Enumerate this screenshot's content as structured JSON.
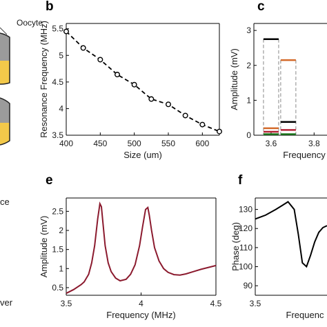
{
  "panel_letters": {
    "b": "b",
    "c": "c",
    "e": "e",
    "f": "f"
  },
  "left_text": {
    "oocyte": "Oocyte",
    "ce": "ce",
    "ver": "ver"
  },
  "chart_data": [
    {
      "id": "b",
      "type": "line",
      "xlabel": "Size (um)",
      "ylabel": "Resonance Frequency (MHz)",
      "xlim": [
        400,
        625
      ],
      "ylim": [
        3.5,
        5.6
      ],
      "xticks": [
        400,
        450,
        500,
        550,
        600
      ],
      "yticks": [
        3.5,
        4,
        4.5,
        5,
        5.5
      ],
      "x": [
        400,
        425,
        450,
        475,
        500,
        525,
        550,
        575,
        600,
        625
      ],
      "y": [
        5.45,
        5.14,
        4.92,
        4.64,
        4.45,
        4.18,
        4.08,
        3.87,
        3.7,
        3.57
      ],
      "line_style": "dashed",
      "marker": "open-circle",
      "color": "#000000"
    },
    {
      "id": "c",
      "type": "bar",
      "ylabel": "Amplitude (mV)",
      "xlabel": "Frequency",
      "ylim": [
        0,
        3.2
      ],
      "yticks": [
        0,
        1,
        2,
        3
      ],
      "xticks": [
        3.6,
        3.8
      ],
      "groups": [
        {
          "x": 3.6,
          "levels": [
            {
              "value": 2.75,
              "color": "#000000"
            },
            {
              "value": 0.2,
              "color": "#d46a2a"
            },
            {
              "value": 0.1,
              "color": "#b22234"
            },
            {
              "value": 0.03,
              "color": "#1f7a1f"
            }
          ]
        },
        {
          "x": 3.68,
          "levels": [
            {
              "value": 2.15,
              "color": "#d46a2a"
            },
            {
              "value": 0.38,
              "color": "#000000"
            },
            {
              "value": 0.15,
              "color": "#b22234"
            },
            {
              "value": 0.03,
              "color": "#1f7a1f"
            }
          ]
        }
      ]
    },
    {
      "id": "e",
      "type": "line",
      "xlabel": "Frequency (MHz)",
      "ylabel": "Amplitude (mV)",
      "xlim": [
        3.5,
        4.5
      ],
      "ylim": [
        0.3,
        2.85
      ],
      "xticks": [
        3.5,
        4,
        4.5
      ],
      "yticks": [
        0.5,
        1,
        1.5,
        2,
        2.5
      ],
      "color": "#8b1a2e",
      "x": [
        3.5,
        3.55,
        3.6,
        3.62,
        3.65,
        3.67,
        3.69,
        3.71,
        3.725,
        3.735,
        3.745,
        3.76,
        3.78,
        3.8,
        3.83,
        3.86,
        3.9,
        3.93,
        3.96,
        3.99,
        4.01,
        4.03,
        4.045,
        4.055,
        4.07,
        4.09,
        4.12,
        4.15,
        4.18,
        4.22,
        4.26,
        4.3,
        4.35,
        4.4,
        4.45,
        4.5
      ],
      "y": [
        0.35,
        0.45,
        0.58,
        0.65,
        0.85,
        1.15,
        1.6,
        2.3,
        2.7,
        2.62,
        2.2,
        1.6,
        1.15,
        0.92,
        0.75,
        0.68,
        0.72,
        0.85,
        1.1,
        1.6,
        2.1,
        2.55,
        2.6,
        2.4,
        2.0,
        1.55,
        1.2,
        1.0,
        0.9,
        0.84,
        0.83,
        0.86,
        0.92,
        0.98,
        1.03,
        1.08
      ]
    },
    {
      "id": "f",
      "type": "line",
      "xlabel": "Frequenc",
      "ylabel": "Phase (deg)",
      "xlim": [
        3.5,
        3.85
      ],
      "ylim": [
        85,
        136
      ],
      "xticks": [
        3.5
      ],
      "yticks": [
        90,
        100,
        110,
        120,
        130
      ],
      "color": "#000000",
      "x": [
        3.5,
        3.55,
        3.6,
        3.63,
        3.66,
        3.69,
        3.71,
        3.73,
        3.75,
        3.77,
        3.79,
        3.81,
        3.83,
        3.85
      ],
      "y": [
        125,
        127,
        130,
        132,
        134,
        130,
        117,
        102,
        100,
        106,
        113,
        118,
        120.5,
        121.5
      ]
    }
  ]
}
